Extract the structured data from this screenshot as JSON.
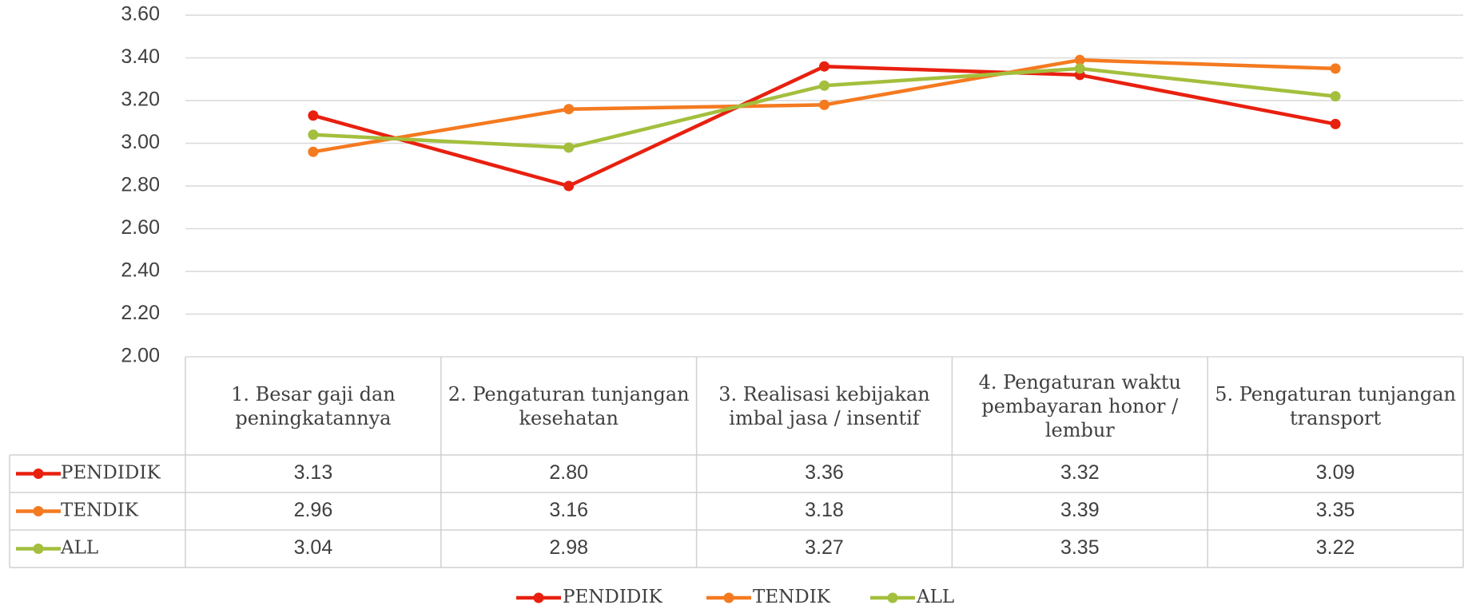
{
  "chart_data": {
    "type": "line",
    "categories": [
      "1. Besar gaji dan peningkatannya",
      "2. Pengaturan tunjangan kesehatan",
      "3. Realisasi kebijakan imbal jasa / insentif",
      "4. Pengaturan waktu pembayaran honor / lembur",
      "5. Pengaturan tunjangan transport"
    ],
    "series": [
      {
        "name": "PENDIDIK",
        "color": "#e8200f",
        "values": [
          3.13,
          2.8,
          3.36,
          3.32,
          3.09
        ],
        "value_labels": [
          "3.13",
          "2.80",
          "3.36",
          "3.32",
          "3.09"
        ]
      },
      {
        "name": "TENDIK",
        "color": "#f47a20",
        "values": [
          2.96,
          3.16,
          3.18,
          3.39,
          3.35
        ],
        "value_labels": [
          "2.96",
          "3.16",
          "3.18",
          "3.39",
          "3.35"
        ]
      },
      {
        "name": "ALL",
        "color": "#a3bf3d",
        "values": [
          3.04,
          2.98,
          3.27,
          3.35,
          3.22
        ],
        "value_labels": [
          "3.04",
          "2.98",
          "3.27",
          "3.35",
          "3.22"
        ]
      }
    ],
    "ylim": [
      2,
      3.6
    ],
    "yticks": [
      {
        "value": 2,
        "label": "2.00"
      },
      {
        "value": 2.2,
        "label": "2.20"
      },
      {
        "value": 2.4,
        "label": "2.40"
      },
      {
        "value": 2.6,
        "label": "2.60"
      },
      {
        "value": 2.8,
        "label": "2.80"
      },
      {
        "value": 3,
        "label": "3.00"
      },
      {
        "value": 3.2,
        "label": "3.20"
      },
      {
        "value": 3.4,
        "label": "3.40"
      },
      {
        "value": 3.6,
        "label": "3.60"
      }
    ],
    "grid": true,
    "legend": "bottom"
  }
}
